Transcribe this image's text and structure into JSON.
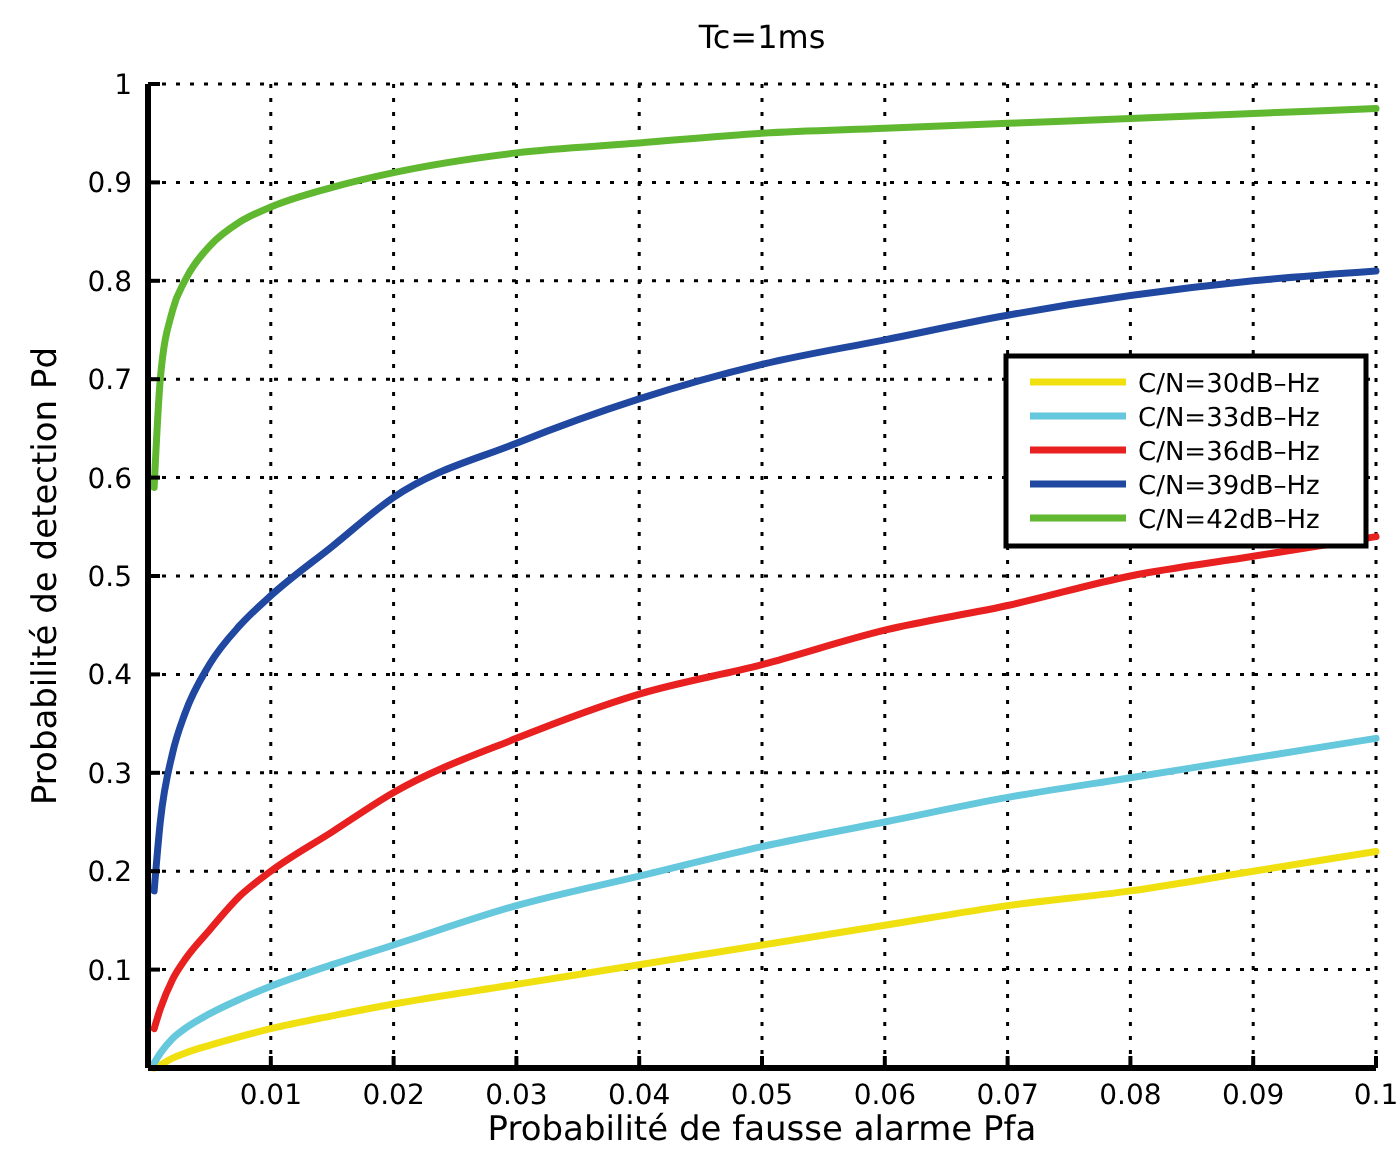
{
  "chart_data": {
    "type": "line",
    "title": "Tc=1ms",
    "xlabel": "Probabilité de fausse alarme Pfa",
    "ylabel": "Probabilité de detection Pd",
    "x": [
      0.0005,
      0.001,
      0.002,
      0.003,
      0.005,
      0.0075,
      0.01,
      0.015,
      0.02,
      0.03,
      0.04,
      0.05,
      0.06,
      0.07,
      0.08,
      0.09,
      0.1
    ],
    "series": [
      {
        "name": "C/N=30dB–Hz",
        "color": "#f0e010",
        "values": [
          0,
          0.003,
          0.01,
          0.015,
          0.023,
          0.032,
          0.04,
          0.053,
          0.065,
          0.085,
          0.105,
          0.125,
          0.145,
          0.165,
          0.18,
          0.2,
          0.22
        ]
      },
      {
        "name": "C/N=33dB–Hz",
        "color": "#66c8dc",
        "values": [
          0.005,
          0.015,
          0.03,
          0.04,
          0.055,
          0.07,
          0.083,
          0.105,
          0.125,
          0.165,
          0.195,
          0.225,
          0.25,
          0.275,
          0.295,
          0.315,
          0.335
        ]
      },
      {
        "name": "C/N=36dB–Hz",
        "color": "#e82020",
        "values": [
          0.04,
          0.06,
          0.09,
          0.11,
          0.14,
          0.175,
          0.2,
          0.24,
          0.28,
          0.335,
          0.38,
          0.41,
          0.445,
          0.47,
          0.5,
          0.52,
          0.54
        ]
      },
      {
        "name": "C/N=39dB–Hz",
        "color": "#2048a0",
        "values": [
          0.18,
          0.25,
          0.32,
          0.36,
          0.41,
          0.45,
          0.48,
          0.53,
          0.58,
          0.635,
          0.68,
          0.715,
          0.74,
          0.765,
          0.785,
          0.8,
          0.81
        ]
      },
      {
        "name": "C/N=42dB–Hz",
        "color": "#60b830",
        "values": [
          0.59,
          0.7,
          0.77,
          0.8,
          0.835,
          0.86,
          0.875,
          0.895,
          0.91,
          0.93,
          0.94,
          0.95,
          0.955,
          0.96,
          0.965,
          0.97,
          0.975
        ]
      }
    ],
    "xlim": [
      0,
      0.1
    ],
    "ylim": [
      0,
      1
    ],
    "xticks": [
      0.01,
      0.02,
      0.03,
      0.04,
      0.05,
      0.06,
      0.07,
      0.08,
      0.09,
      0.1
    ],
    "yticks": [
      0.1,
      0.2,
      0.3,
      0.4,
      0.5,
      0.6,
      0.7,
      0.8,
      0.9,
      1
    ],
    "grid": true,
    "legend": "right",
    "marker": "none",
    "line_style": "solid"
  }
}
